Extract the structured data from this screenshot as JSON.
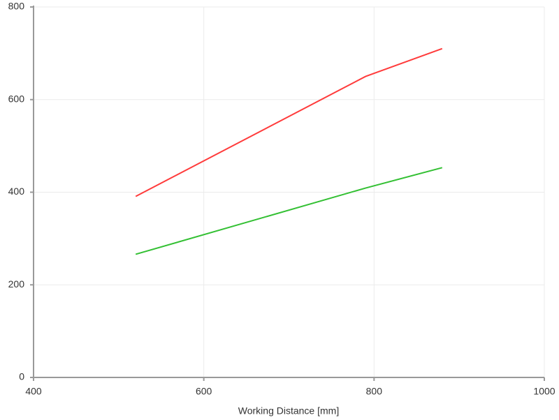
{
  "chart_data": {
    "type": "line",
    "x_label": "Working Distance [mm]",
    "x": [
      520,
      790,
      880
    ],
    "series": [
      {
        "color": "#ff3b3b",
        "values": [
          391,
          650,
          710
        ]
      },
      {
        "color": "#33c033",
        "values": [
          266,
          409,
          453
        ]
      }
    ],
    "xlim": [
      400,
      1000
    ],
    "xticks": [
      400,
      600,
      800,
      1000
    ],
    "ylim": [
      0,
      800
    ],
    "yticks": [
      0,
      200,
      400,
      600,
      800
    ],
    "grid": true
  }
}
